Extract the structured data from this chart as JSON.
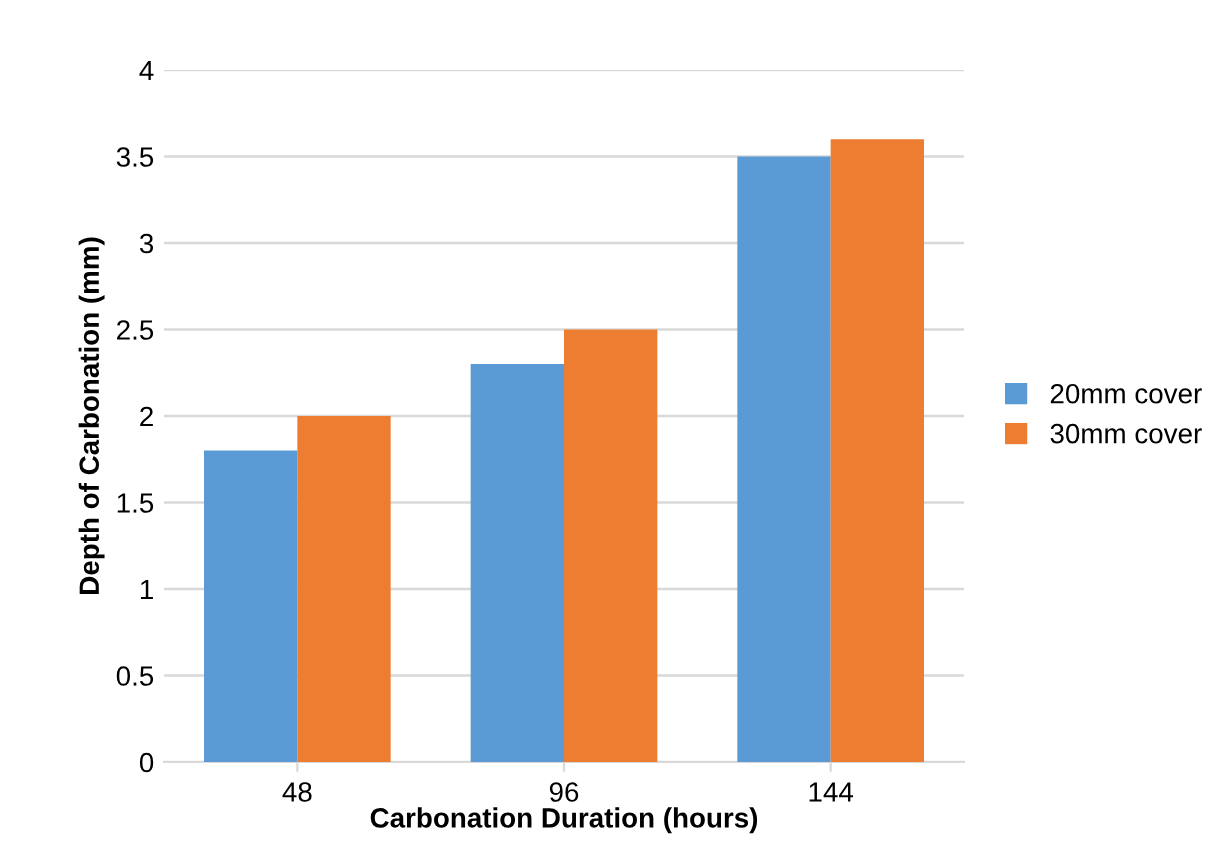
{
  "chart_data": {
    "type": "bar",
    "xlabel": "Carbonation Duration (hours)",
    "ylabel": "Depth of Carbonation (mm)",
    "categories": [
      "48",
      "96",
      "144"
    ],
    "series": [
      {
        "name": "20mm cover",
        "color": "#5b9bd5",
        "values": [
          1.8,
          2.3,
          3.5
        ]
      },
      {
        "name": "30mm cover",
        "color": "#ed7d31",
        "values": [
          2.0,
          2.5,
          3.6
        ]
      }
    ],
    "ylim": [
      0,
      4
    ],
    "yticks": [
      0,
      0.5,
      1,
      1.5,
      2,
      2.5,
      3,
      3.5,
      4
    ],
    "grid": "y",
    "legend": "right"
  }
}
